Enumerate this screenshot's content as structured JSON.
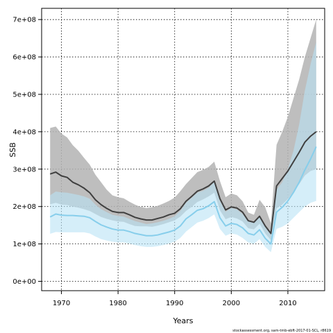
{
  "chart_data": {
    "type": "area",
    "xlabel": "Years",
    "ylabel": "SSB",
    "xlim": [
      1966.5,
      2016.5
    ],
    "ylim": [
      -25000000,
      730000000
    ],
    "grid": true,
    "x_ticks": [
      1970,
      1980,
      1990,
      2000,
      2010
    ],
    "y_ticks": [
      0,
      100000000,
      200000000,
      300000000,
      400000000,
      500000000,
      600000000,
      700000000
    ],
    "x_tick_labels": [
      "1970",
      "1980",
      "1990",
      "2000",
      "2010"
    ],
    "y_tick_labels": [
      "0e+00",
      "1e+08",
      "2e+08",
      "3e+08",
      "4e+08",
      "5e+08",
      "6e+08",
      "7e+08"
    ],
    "x": [
      1968,
      1969,
      1970,
      1971,
      1972,
      1973,
      1974,
      1975,
      1976,
      1977,
      1978,
      1979,
      1980,
      1981,
      1982,
      1983,
      1984,
      1985,
      1986,
      1987,
      1988,
      1989,
      1990,
      1991,
      1992,
      1993,
      1994,
      1995,
      1996,
      1997,
      1998,
      1999,
      2000,
      2001,
      2002,
      2003,
      2004,
      2005,
      2006,
      2007,
      2008,
      2009,
      2010,
      2011,
      2012,
      2013,
      2014,
      2015
    ],
    "series": [
      {
        "color": "#3f3f3f",
        "band_color": "#b3b3b3",
        "values": [
          287,
          292,
          282,
          278,
          265,
          258,
          249,
          237,
          218,
          205,
          195,
          187,
          184,
          184,
          178,
          171,
          167,
          164,
          164,
          168,
          172,
          178,
          182,
          194,
          214,
          227,
          241,
          247,
          255,
          268,
          221,
          191,
          199,
          196,
          185,
          162,
          158,
          174,
          148,
          128,
          255,
          275,
          295,
          320,
          345,
          372,
          388,
          400
        ],
        "lower": [
          206,
          210,
          205,
          204,
          200,
          197,
          193,
          188,
          180,
          172,
          167,
          163,
          160,
          159,
          153,
          148,
          147,
          147,
          146,
          149,
          153,
          158,
          163,
          173,
          188,
          199,
          212,
          219,
          227,
          237,
          190,
          166,
          172,
          168,
          160,
          142,
          139,
          154,
          128,
          110,
          195,
          205,
          220,
          240,
          260,
          283,
          295,
          300
        ],
        "upper": [
          410,
          414,
          395,
          385,
          364,
          349,
          330,
          312,
          285,
          265,
          245,
          230,
          225,
          222,
          213,
          205,
          199,
          196,
          198,
          202,
          208,
          215,
          224,
          241,
          260,
          276,
          292,
          298,
          306,
          320,
          268,
          225,
          235,
          230,
          214,
          184,
          178,
          218,
          198,
          155,
          365,
          400,
          440,
          490,
          540,
          600,
          650,
          700
        ]
      },
      {
        "color": "#87ceeb",
        "band_color": "#b9e2f5",
        "values": [
          172,
          180,
          177,
          176,
          176,
          175,
          174,
          170,
          160,
          151,
          145,
          140,
          137,
          137,
          133,
          128,
          125,
          122,
          122,
          124,
          128,
          132,
          137,
          148,
          167,
          178,
          190,
          194,
          202,
          213,
          170,
          148,
          155,
          152,
          143,
          128,
          124,
          138,
          115,
          100,
          185,
          198,
          215,
          238,
          265,
          298,
          327,
          360
        ],
        "lower": [
          127,
          132,
          131,
          131,
          131,
          131,
          131,
          128,
          120,
          113,
          109,
          106,
          104,
          104,
          101,
          97,
          94,
          92,
          92,
          94,
          97,
          101,
          106,
          116,
          133,
          145,
          157,
          162,
          169,
          179,
          140,
          122,
          128,
          125,
          116,
          104,
          100,
          113,
          92,
          78,
          140,
          146,
          155,
          170,
          185,
          200,
          210,
          215
        ],
        "upper": [
          230,
          240,
          238,
          237,
          234,
          231,
          227,
          221,
          205,
          193,
          185,
          178,
          175,
          173,
          167,
          161,
          157,
          153,
          155,
          158,
          162,
          167,
          174,
          188,
          210,
          223,
          237,
          242,
          250,
          265,
          215,
          186,
          196,
          192,
          180,
          161,
          157,
          172,
          146,
          125,
          245,
          265,
          300,
          350,
          420,
          510,
          580,
          640
        ]
      }
    ]
  },
  "footer_text": "stockassessment.org, sam-tmb-ebft-2017-01-SCL, r8619"
}
